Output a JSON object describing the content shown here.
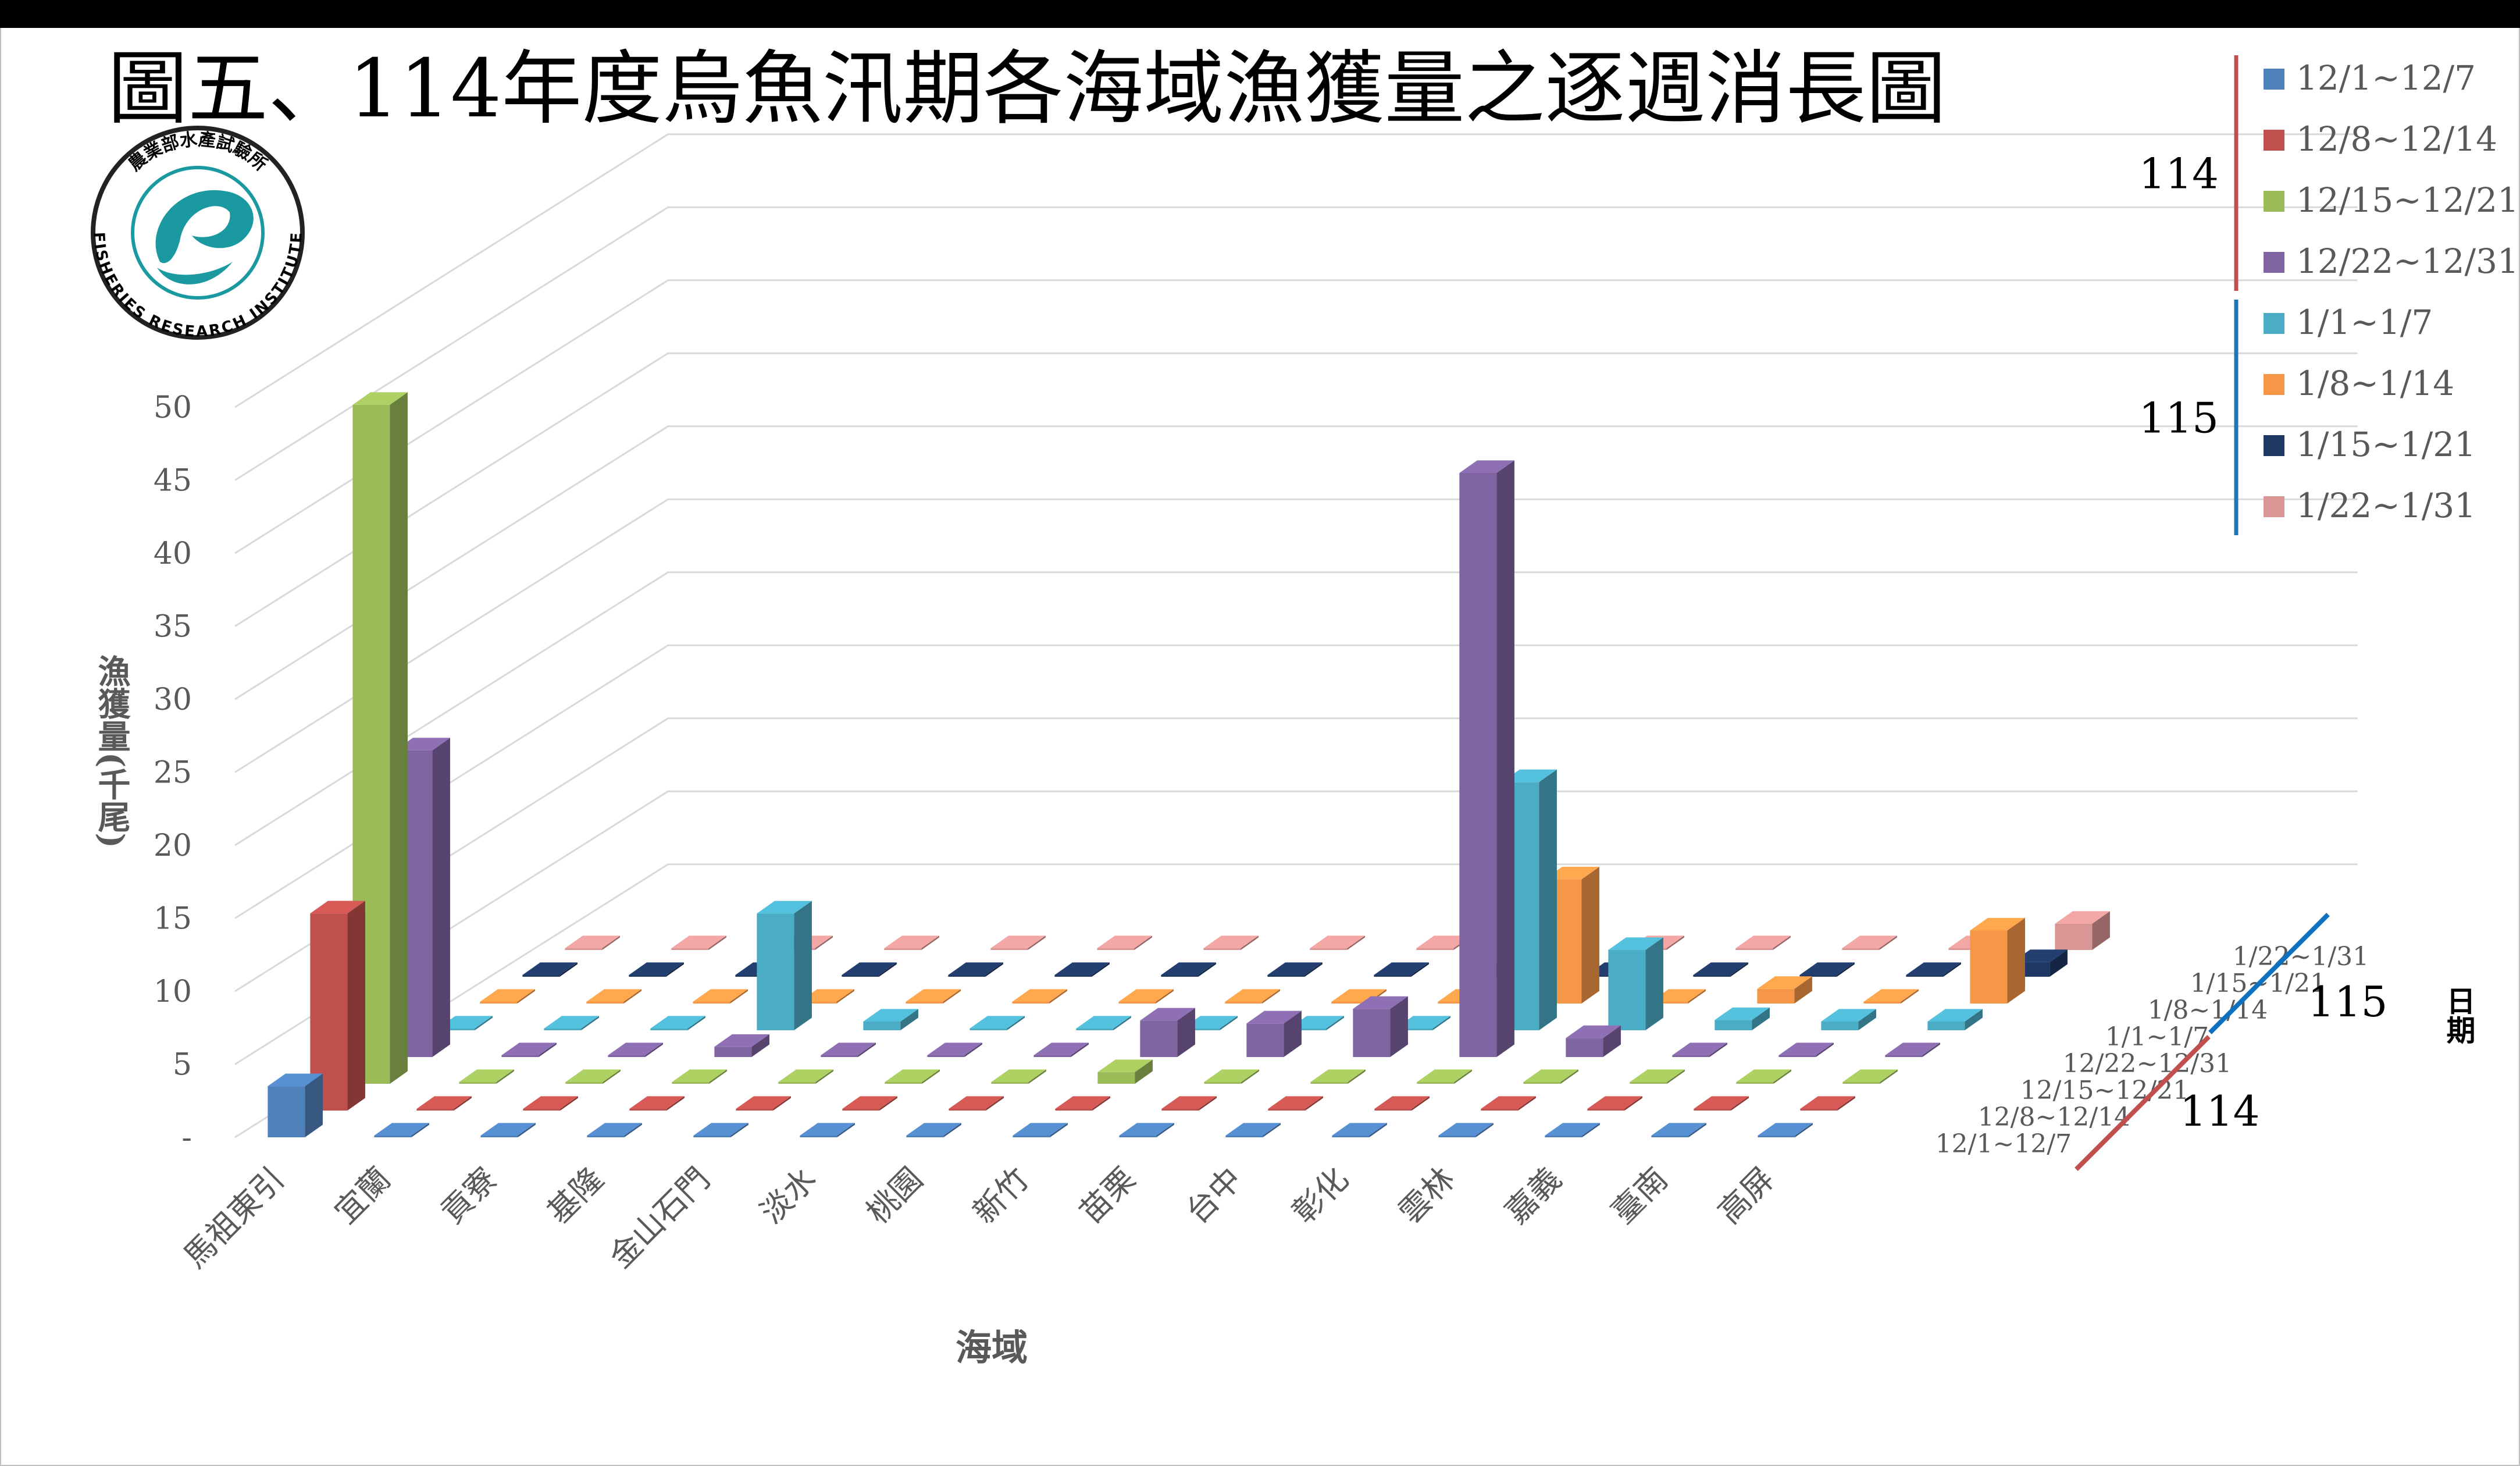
{
  "title": "圖五、114年度烏魚汛期各海域漁獲量之逐週消長圖",
  "logo": {
    "text_top": "農業部水產試驗所",
    "text_bottom": "FISHERIES RESEARCH INSTITUTE",
    "color": "#1a9aa0"
  },
  "legend_groups": [
    {
      "year": "114",
      "color": "#c0504d",
      "series_indices": [
        0,
        1,
        2,
        3
      ]
    },
    {
      "year": "115",
      "color": "#1f77b4",
      "series_indices": [
        4,
        5,
        6,
        7
      ]
    }
  ],
  "depth_axis": {
    "title": "日期",
    "group_low": "114",
    "group_high": "115",
    "group_low_color": "#c0504d",
    "group_high_color": "#1070c0"
  },
  "chart_data": {
    "type": "bar",
    "subtype": "3d-grouped-depth",
    "xlabel": "海域",
    "ylabel": "漁獲量(千尾)",
    "ylim": [
      0,
      50
    ],
    "yticks": [
      "-",
      "5",
      "10",
      "15",
      "20",
      "25",
      "30",
      "35",
      "40",
      "45",
      "50"
    ],
    "grid": true,
    "legend_position": "top-right",
    "categories": [
      "馬祖東引",
      "宜蘭",
      "貢寮",
      "基隆",
      "金山石門",
      "淡水",
      "桃園",
      "新竹",
      "苗栗",
      "台中",
      "彰化",
      "雲林",
      "嘉義",
      "臺南",
      "高屏"
    ],
    "series": [
      {
        "name": "12/1~12/7",
        "color": "#4f81bd",
        "values": [
          3.5,
          0,
          0,
          0,
          0,
          0,
          0,
          0,
          0,
          0,
          0,
          0,
          0,
          0,
          0
        ]
      },
      {
        "name": "12/8~12/14",
        "color": "#c0504d",
        "values": [
          13.5,
          0,
          0,
          0,
          0,
          0,
          0,
          0,
          0,
          0,
          0,
          0,
          0,
          0,
          0
        ]
      },
      {
        "name": "12/15~12/21",
        "color": "#9bbb59",
        "values": [
          46.5,
          0,
          0,
          0,
          0,
          0,
          0,
          0.8,
          0,
          0,
          0,
          0,
          0,
          0,
          0
        ]
      },
      {
        "name": "12/22~12/31",
        "color": "#8064a2",
        "values": [
          21,
          0,
          0,
          0.7,
          0,
          0,
          0,
          2.5,
          2.3,
          3.3,
          40,
          1.3,
          0,
          0,
          0
        ]
      },
      {
        "name": "1/1~1/7",
        "color": "#4bacc6",
        "values": [
          0,
          0,
          0,
          8,
          0.6,
          0,
          0,
          0,
          0,
          0,
          17,
          5.5,
          0.7,
          0.6,
          0.6
        ]
      },
      {
        "name": "1/8~1/14",
        "color": "#f79646",
        "values": [
          0,
          0,
          0,
          0,
          0,
          0,
          0,
          0,
          0,
          0,
          8.5,
          0,
          1,
          0,
          5
        ]
      },
      {
        "name": "1/15~1/21",
        "color": "#1f3864",
        "values": [
          0,
          0,
          0,
          0,
          0,
          0,
          0,
          0,
          0,
          0,
          0,
          0,
          0,
          0,
          1
        ]
      },
      {
        "name": "1/22~1/31",
        "color": "#d99694",
        "values": [
          0,
          0,
          0,
          0,
          0,
          0,
          0,
          0,
          0,
          0,
          0,
          0,
          0,
          0,
          1.8
        ]
      }
    ]
  }
}
